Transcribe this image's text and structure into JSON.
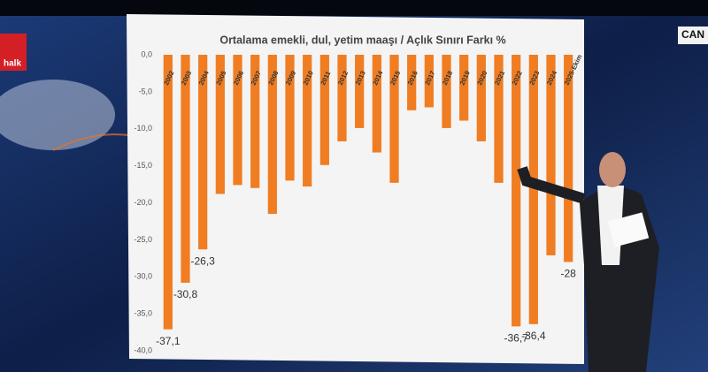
{
  "chart_data": {
    "type": "bar",
    "title": "Ortalama emekli, dul, yetim maaşı / Açlık Sınırı Farkı %",
    "categories": [
      "2002",
      "2003",
      "2004",
      "2005",
      "2006",
      "2007",
      "2008",
      "2009",
      "2010",
      "2011",
      "2012",
      "2013",
      "2014",
      "2015",
      "2016",
      "2017",
      "2018",
      "2019",
      "2020",
      "2021",
      "2022",
      "2023",
      "2024",
      "2025-Ekim"
    ],
    "values": [
      -37.1,
      -30.8,
      -26.3,
      -18.8,
      -17.6,
      -18.0,
      -21.5,
      -17.0,
      -17.8,
      -14.9,
      -11.7,
      -9.9,
      -13.2,
      -17.3,
      -7.5,
      -7.1,
      -9.9,
      -8.9,
      -11.7,
      -17.3,
      -36.7,
      -36.4,
      -27.1,
      -28
    ],
    "value_labels": [
      "-37,1",
      "-30,8",
      "-26,3",
      null,
      null,
      null,
      null,
      null,
      null,
      null,
      null,
      null,
      null,
      null,
      null,
      null,
      null,
      null,
      null,
      null,
      "-36,7",
      "-36,4",
      null,
      "-28"
    ],
    "color": "#f07d22",
    "ylim": [
      -40,
      0
    ],
    "yticks": [
      {
        "value": 0,
        "label": "0,0"
      },
      {
        "value": -5,
        "label": "-5,0"
      },
      {
        "value": -10,
        "label": "-10,0"
      },
      {
        "value": -15,
        "label": "-15,0"
      },
      {
        "value": -20,
        "label": "-20,0"
      },
      {
        "value": -25,
        "label": "-25,0"
      },
      {
        "value": -30,
        "label": "-30,0"
      },
      {
        "value": -35,
        "label": "-35,0"
      },
      {
        "value": -40,
        "label": "-40,0"
      }
    ],
    "grid": false
  },
  "branding": {
    "logo": "halk",
    "corner_tag": "CAN"
  }
}
